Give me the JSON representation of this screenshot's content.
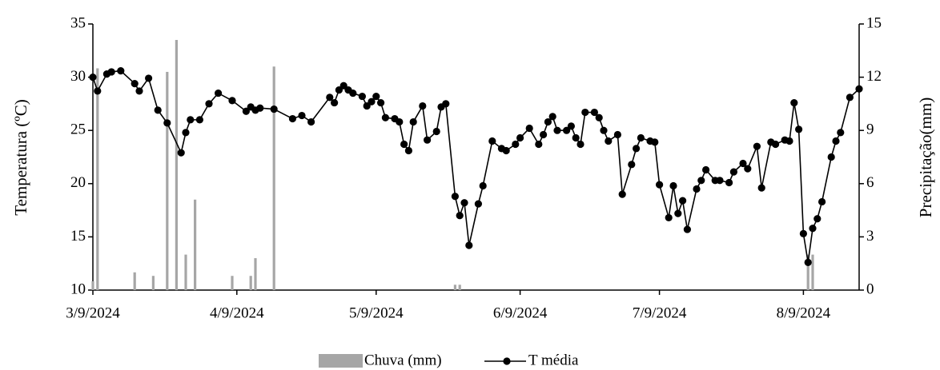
{
  "chart_data": {
    "type": "line",
    "y_label": "Temperatura (ºC)",
    "y2_label": "Precipitação(mm)",
    "xlim": [
      "2024-03-09",
      "2024-08-21"
    ],
    "xticks": [
      {
        "value": "2024-03-09",
        "label": "3/9/2024"
      },
      {
        "value": "2024-04-09",
        "label": "4/9/2024"
      },
      {
        "value": "2024-05-09",
        "label": "5/9/2024"
      },
      {
        "value": "2024-06-09",
        "label": "6/9/2024"
      },
      {
        "value": "2024-07-09",
        "label": "7/9/2024"
      },
      {
        "value": "2024-08-09",
        "label": "8/9/2024"
      }
    ],
    "ylim": [
      10,
      35
    ],
    "yticks": [
      10,
      15,
      20,
      25,
      30,
      35
    ],
    "y2lim": [
      0,
      15
    ],
    "y2ticks": [
      0,
      3,
      6,
      9,
      12,
      15
    ],
    "series": [
      {
        "name": "Chuva (mm)",
        "type": "bar",
        "axis": "y2",
        "color": "#a6a6a6",
        "x": [
          "2024-03-09",
          "2024-03-10",
          "2024-03-18",
          "2024-03-22",
          "2024-03-25",
          "2024-03-27",
          "2024-03-29",
          "2024-03-31",
          "2024-04-08",
          "2024-04-12",
          "2024-04-13",
          "2024-04-17",
          "2024-05-26",
          "2024-05-27",
          "2024-08-10",
          "2024-08-11"
        ],
        "values": [
          0.5,
          12.5,
          1.0,
          0.8,
          12.3,
          14.1,
          2.0,
          5.1,
          0.8,
          0.8,
          1.8,
          12.6,
          0.3,
          0.3,
          2.0,
          2.0
        ]
      },
      {
        "name": "T média",
        "type": "line",
        "color": "#000000",
        "x": [
          "2024-03-09",
          "2024-03-10",
          "2024-03-12",
          "2024-03-13",
          "2024-03-15",
          "2024-03-18",
          "2024-03-19",
          "2024-03-21",
          "2024-03-23",
          "2024-03-25",
          "2024-03-28",
          "2024-03-29",
          "2024-03-30",
          "2024-04-01",
          "2024-04-03",
          "2024-04-05",
          "2024-04-08",
          "2024-04-11",
          "2024-04-12",
          "2024-04-13",
          "2024-04-14",
          "2024-04-17",
          "2024-04-21",
          "2024-04-23",
          "2024-04-25",
          "2024-04-29",
          "2024-04-30",
          "2024-05-01",
          "2024-05-02",
          "2024-05-03",
          "2024-05-04",
          "2024-05-06",
          "2024-05-07",
          "2024-05-08",
          "2024-05-09",
          "2024-05-10",
          "2024-05-11",
          "2024-05-13",
          "2024-05-14",
          "2024-05-15",
          "2024-05-16",
          "2024-05-17",
          "2024-05-19",
          "2024-05-20",
          "2024-05-22",
          "2024-05-23",
          "2024-05-24",
          "2024-05-26",
          "2024-05-27",
          "2024-05-28",
          "2024-05-29",
          "2024-05-31",
          "2024-06-01",
          "2024-06-03",
          "2024-06-05",
          "2024-06-06",
          "2024-06-08",
          "2024-06-09",
          "2024-06-11",
          "2024-06-13",
          "2024-06-14",
          "2024-06-15",
          "2024-06-16",
          "2024-06-17",
          "2024-06-19",
          "2024-06-20",
          "2024-06-21",
          "2024-06-22",
          "2024-06-23",
          "2024-06-25",
          "2024-06-26",
          "2024-06-27",
          "2024-06-28",
          "2024-06-30",
          "2024-07-01",
          "2024-07-03",
          "2024-07-04",
          "2024-07-05",
          "2024-07-07",
          "2024-07-08",
          "2024-07-09",
          "2024-07-11",
          "2024-07-12",
          "2024-07-13",
          "2024-07-14",
          "2024-07-15",
          "2024-07-17",
          "2024-07-18",
          "2024-07-19",
          "2024-07-21",
          "2024-07-22",
          "2024-07-24",
          "2024-07-25",
          "2024-07-27",
          "2024-07-28",
          "2024-07-30",
          "2024-07-31",
          "2024-08-02",
          "2024-08-03",
          "2024-08-05",
          "2024-08-06",
          "2024-08-07",
          "2024-08-08",
          "2024-08-09",
          "2024-08-10",
          "2024-08-11",
          "2024-08-12",
          "2024-08-13",
          "2024-08-15",
          "2024-08-16",
          "2024-08-17",
          "2024-08-19",
          "2024-08-21"
        ],
        "values": [
          30.0,
          28.7,
          30.3,
          30.5,
          30.6,
          29.4,
          28.7,
          29.9,
          26.9,
          25.7,
          22.9,
          24.8,
          26.0,
          26.0,
          27.5,
          28.5,
          27.8,
          26.8,
          27.2,
          26.9,
          27.1,
          27.0,
          26.1,
          26.4,
          25.8,
          28.1,
          27.6,
          28.8,
          29.2,
          28.8,
          28.5,
          28.2,
          27.3,
          27.7,
          28.2,
          27.6,
          26.2,
          26.1,
          25.8,
          23.7,
          23.1,
          25.8,
          27.3,
          24.1,
          24.9,
          27.2,
          27.5,
          18.8,
          17.0,
          18.2,
          14.2,
          18.1,
          19.8,
          24.0,
          23.3,
          23.1,
          23.7,
          24.3,
          25.2,
          23.7,
          24.6,
          25.8,
          26.3,
          25.0,
          25.0,
          25.4,
          24.3,
          23.7,
          26.7,
          26.7,
          26.2,
          25.0,
          24.0,
          24.6,
          19.0,
          21.8,
          23.3,
          24.3,
          24.0,
          23.9,
          19.9,
          16.8,
          19.8,
          17.2,
          18.4,
          15.7,
          19.5,
          20.3,
          21.3,
          20.3,
          20.3,
          20.1,
          21.1,
          21.9,
          21.4,
          23.5,
          19.6,
          23.9,
          23.7,
          24.1,
          24.0,
          27.6,
          25.1,
          15.3,
          12.6,
          15.8,
          16.7,
          18.3,
          22.5,
          24.0,
          24.8,
          28.1,
          28.9
        ]
      }
    ]
  }
}
